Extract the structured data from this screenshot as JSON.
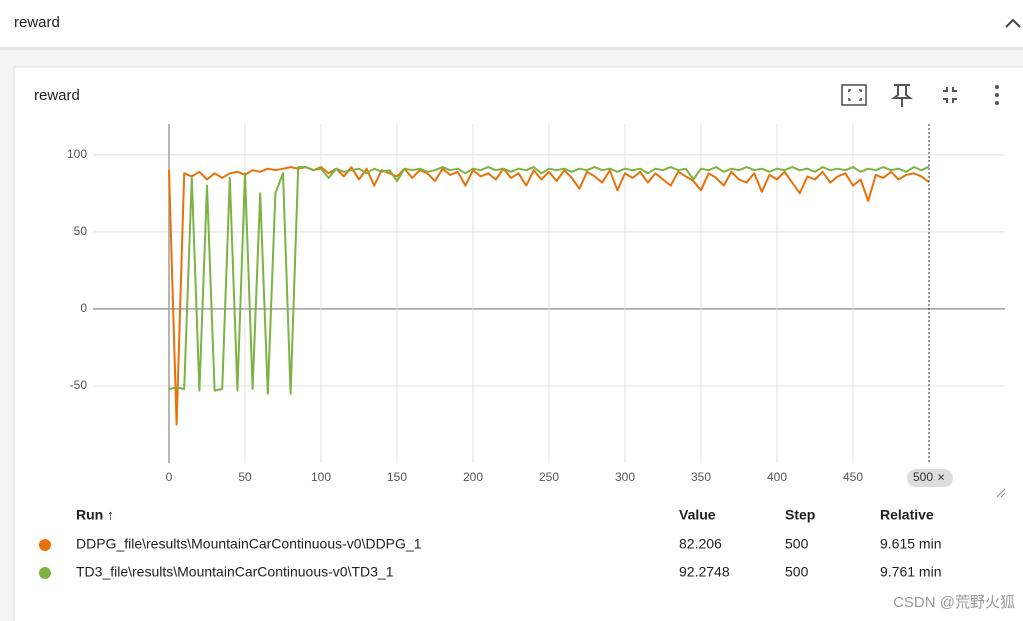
{
  "header": {
    "title": "reward"
  },
  "card": {
    "title": "reward"
  },
  "chart_data": {
    "type": "line",
    "x": [
      0,
      5,
      10,
      15,
      20,
      25,
      30,
      35,
      40,
      45,
      50,
      55,
      60,
      65,
      70,
      75,
      80,
      85,
      90,
      95,
      100,
      105,
      110,
      115,
      120,
      125,
      130,
      135,
      140,
      145,
      150,
      155,
      160,
      165,
      170,
      175,
      180,
      185,
      190,
      195,
      200,
      205,
      210,
      215,
      220,
      225,
      230,
      235,
      240,
      245,
      250,
      255,
      260,
      265,
      270,
      275,
      280,
      285,
      290,
      295,
      300,
      305,
      310,
      315,
      320,
      325,
      330,
      335,
      340,
      345,
      350,
      355,
      360,
      365,
      370,
      375,
      380,
      385,
      390,
      395,
      400,
      405,
      410,
      415,
      420,
      425,
      430,
      435,
      440,
      445,
      450,
      455,
      460,
      465,
      470,
      475,
      480,
      485,
      490,
      495,
      500
    ],
    "series": [
      {
        "name": "DDPG_file\\results\\MountainCarContinuous-v0\\DDPG_1",
        "color": "#e8710a",
        "values": [
          90,
          -75,
          88,
          86,
          89,
          84,
          88,
          85,
          88,
          89,
          87,
          90,
          89,
          91,
          90,
          91,
          92,
          91,
          92,
          90,
          92,
          88,
          91,
          86,
          92,
          84,
          91,
          80,
          90,
          88,
          86,
          91,
          85,
          90,
          88,
          83,
          91,
          87,
          89,
          80,
          90,
          86,
          88,
          84,
          91,
          85,
          88,
          80,
          90,
          84,
          89,
          83,
          90,
          85,
          78,
          89,
          86,
          82,
          90,
          77,
          88,
          85,
          89,
          82,
          88,
          84,
          80,
          89,
          86,
          83,
          77,
          88,
          85,
          80,
          89,
          84,
          82,
          88,
          76,
          87,
          84,
          89,
          82,
          75,
          86,
          84,
          89,
          82,
          86,
          88,
          80,
          84,
          70,
          87,
          85,
          89,
          84,
          87,
          88,
          86,
          82.206
        ]
      },
      {
        "name": "TD3_file\\results\\MountainCarContinuous-v0\\TD3_1",
        "color": "#7cb342",
        "values": [
          -52,
          -51,
          -52,
          85,
          -53,
          80,
          -53,
          -52,
          85,
          -53,
          88,
          -52,
          75,
          -55,
          75,
          88,
          -55,
          92,
          92,
          90,
          91,
          85,
          91,
          89,
          90,
          91,
          88,
          91,
          89,
          90,
          83,
          91,
          90,
          91,
          89,
          90,
          92,
          90,
          91,
          88,
          91,
          90,
          92,
          90,
          91,
          89,
          91,
          90,
          92,
          88,
          91,
          90,
          91,
          89,
          91,
          90,
          92,
          90,
          91,
          89,
          91,
          90,
          91,
          88,
          91,
          90,
          92,
          90,
          91,
          84,
          91,
          90,
          92,
          89,
          91,
          90,
          92,
          90,
          91,
          89,
          91,
          90,
          92,
          90,
          91,
          89,
          92,
          90,
          91,
          90,
          92,
          89,
          91,
          90,
          92,
          90,
          91,
          89,
          92,
          90,
          92.2748
        ]
      }
    ],
    "xlim": [
      -50,
      550
    ],
    "ylim": [
      -100,
      120
    ],
    "xticks": [
      0,
      50,
      100,
      150,
      200,
      250,
      300,
      350,
      400,
      450
    ],
    "yticks": [
      -50,
      0,
      50,
      100
    ],
    "cursor": {
      "step": 500,
      "close": "×"
    },
    "grid": true
  },
  "table": {
    "columns": [
      "Run ↑",
      "Value",
      "Step",
      "Relative"
    ],
    "rows": [
      [
        82.206,
        500,
        "9.615 min"
      ],
      [
        92.2748,
        500,
        "9.761 min"
      ]
    ]
  },
  "watermark": "CSDN @荒野火狐"
}
